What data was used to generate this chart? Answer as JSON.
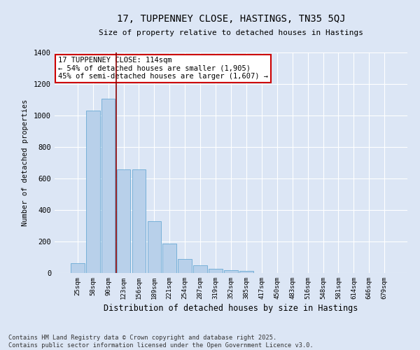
{
  "title": "17, TUPPENNEY CLOSE, HASTINGS, TN35 5QJ",
  "subtitle": "Size of property relative to detached houses in Hastings",
  "xlabel": "Distribution of detached houses by size in Hastings",
  "ylabel": "Number of detached properties",
  "categories": [
    "25sqm",
    "58sqm",
    "90sqm",
    "123sqm",
    "156sqm",
    "189sqm",
    "221sqm",
    "254sqm",
    "287sqm",
    "319sqm",
    "352sqm",
    "385sqm",
    "417sqm",
    "450sqm",
    "483sqm",
    "516sqm",
    "548sqm",
    "581sqm",
    "614sqm",
    "646sqm",
    "679sqm"
  ],
  "values": [
    62,
    1030,
    1105,
    660,
    660,
    330,
    185,
    90,
    50,
    25,
    20,
    12,
    0,
    0,
    0,
    0,
    0,
    0,
    0,
    0,
    0
  ],
  "bar_color": "#b8d0ea",
  "bar_edge_color": "#6aaad4",
  "background_color": "#dce6f5",
  "grid_color": "#ffffff",
  "red_line_x": 2.5,
  "annotation_title": "17 TUPPENNEY CLOSE: 114sqm",
  "annotation_line1": "← 54% of detached houses are smaller (1,905)",
  "annotation_line2": "45% of semi-detached houses are larger (1,607) →",
  "annotation_box_color": "#ffffff",
  "annotation_border_color": "#cc0000",
  "red_line_color": "#8b0000",
  "footer1": "Contains HM Land Registry data © Crown copyright and database right 2025.",
  "footer2": "Contains public sector information licensed under the Open Government Licence v3.0.",
  "ylim": [
    0,
    1400
  ],
  "yticks": [
    0,
    200,
    400,
    600,
    800,
    1000,
    1200,
    1400
  ]
}
